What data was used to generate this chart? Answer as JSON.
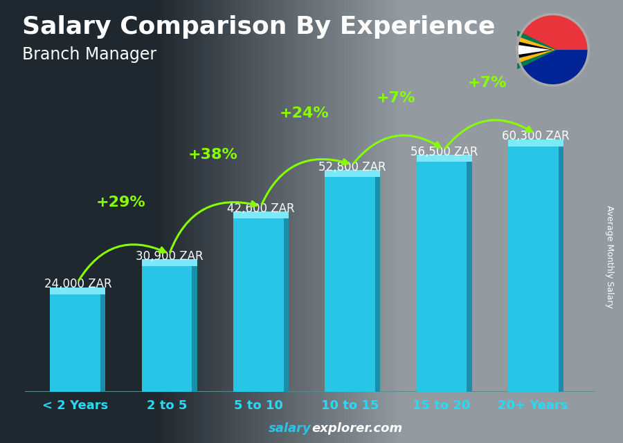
{
  "title": "Salary Comparison By Experience",
  "subtitle": "Branch Manager",
  "ylabel": "Average Monthly Salary",
  "categories": [
    "< 2 Years",
    "2 to 5",
    "5 to 10",
    "10 to 15",
    "15 to 20",
    "20+ Years"
  ],
  "values": [
    24000,
    30900,
    42600,
    52800,
    56500,
    60300
  ],
  "value_labels": [
    "24,000 ZAR",
    "30,900 ZAR",
    "42,600 ZAR",
    "52,800 ZAR",
    "56,500 ZAR",
    "60,300 ZAR"
  ],
  "pct_labels": [
    "+29%",
    "+38%",
    "+24%",
    "+7%",
    "+7%"
  ],
  "bar_front_color": "#29c5e6",
  "bar_side_color": "#1a8faa",
  "bar_top_color": "#7de8f8",
  "bar_edge_color": "#1a8faa",
  "bg_color": "#6b7f8a",
  "title_color": "#ffffff",
  "subtitle_color": "#ffffff",
  "value_label_color": "#ffffff",
  "pct_color": "#88ff00",
  "arrow_color": "#88ff00",
  "xtick_color": "#29d9f8",
  "footer_salary_color": "#29c5e6",
  "footer_explorer_color": "#ffffff",
  "ylabel_color": "#ffffff",
  "ylim": [
    0,
    75000
  ],
  "title_fontsize": 26,
  "subtitle_fontsize": 17,
  "value_fontsize": 12,
  "pct_fontsize": 16,
  "xtick_fontsize": 13,
  "footer_fontsize": 13,
  "ylabel_fontsize": 9
}
